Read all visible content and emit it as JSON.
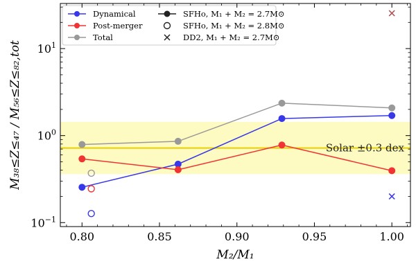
{
  "chart_data": {
    "type": "line",
    "xlabel": "M₂/M₁",
    "ylabel": "M₃₈≤Z≤₄₇ / M₅₆≤Z≤₈₂,tot",
    "xlim": [
      0.786,
      1.012
    ],
    "ylim": [
      0.09,
      33
    ],
    "yscale": "log",
    "grid": false,
    "legend_position": "top-left",
    "x_ticks": [
      {
        "value": 0.8,
        "label": "0.80"
      },
      {
        "value": 0.85,
        "label": "0.85"
      },
      {
        "value": 0.9,
        "label": "0.90"
      },
      {
        "value": 0.95,
        "label": "0.95"
      },
      {
        "value": 1.0,
        "label": "1.00"
      }
    ],
    "y_ticks": [
      {
        "value": 0.1,
        "base": "10",
        "exp": "−1"
      },
      {
        "value": 1,
        "base": "10",
        "exp": "0"
      },
      {
        "value": 10,
        "base": "10",
        "exp": "1"
      }
    ],
    "series": [
      {
        "name": "Dynamical",
        "color": "#3838e8",
        "x": [
          0.8,
          0.862,
          0.929,
          1.0
        ],
        "y": [
          0.255,
          0.47,
          1.57,
          1.7
        ]
      },
      {
        "name": "Post-merger",
        "color": "#f03434",
        "x": [
          0.8,
          0.862,
          0.929,
          1.0
        ],
        "y": [
          0.54,
          0.405,
          0.78,
          0.395
        ]
      },
      {
        "name": "Total",
        "color": "#999999",
        "x": [
          0.8,
          0.862,
          0.929,
          1.0
        ],
        "y": [
          0.79,
          0.86,
          2.36,
          2.08
        ]
      }
    ],
    "extra_points": [
      {
        "model": "SFHo 2.8",
        "marker": "open-circle",
        "color": "#3838e8",
        "x": 0.806,
        "y": 0.127
      },
      {
        "model": "SFHo 2.8",
        "marker": "open-circle",
        "color": "#f03434",
        "x": 0.806,
        "y": 0.245
      },
      {
        "model": "SFHo 2.8",
        "marker": "open-circle",
        "color": "#999999",
        "x": 0.806,
        "y": 0.37
      },
      {
        "model": "DD2",
        "marker": "cross",
        "color": "#3838e8",
        "x": 1.0,
        "y": 0.2
      },
      {
        "model": "DD2",
        "marker": "cross",
        "color": "#b05050",
        "x": 1.0,
        "y": 25.5
      }
    ],
    "solar_band": {
      "center": 0.72,
      "dex": 0.3,
      "line_color": "#e8d000",
      "band_color": "#fdfac2",
      "label": "Solar ±0.3 dex"
    },
    "legend": {
      "series_entries": [
        "Dynamical",
        "Post-merger",
        "Total"
      ],
      "model_entries": [
        {
          "marker": "filled-circle",
          "label": "SFHo, M₁ + M₂ = 2.7M⊙"
        },
        {
          "marker": "open-circle",
          "label": "SFHo, M₁ + M₂ = 2.8M⊙"
        },
        {
          "marker": "cross",
          "label": "DD2, M₁ + M₂ = 2.7M⊙"
        }
      ]
    }
  }
}
